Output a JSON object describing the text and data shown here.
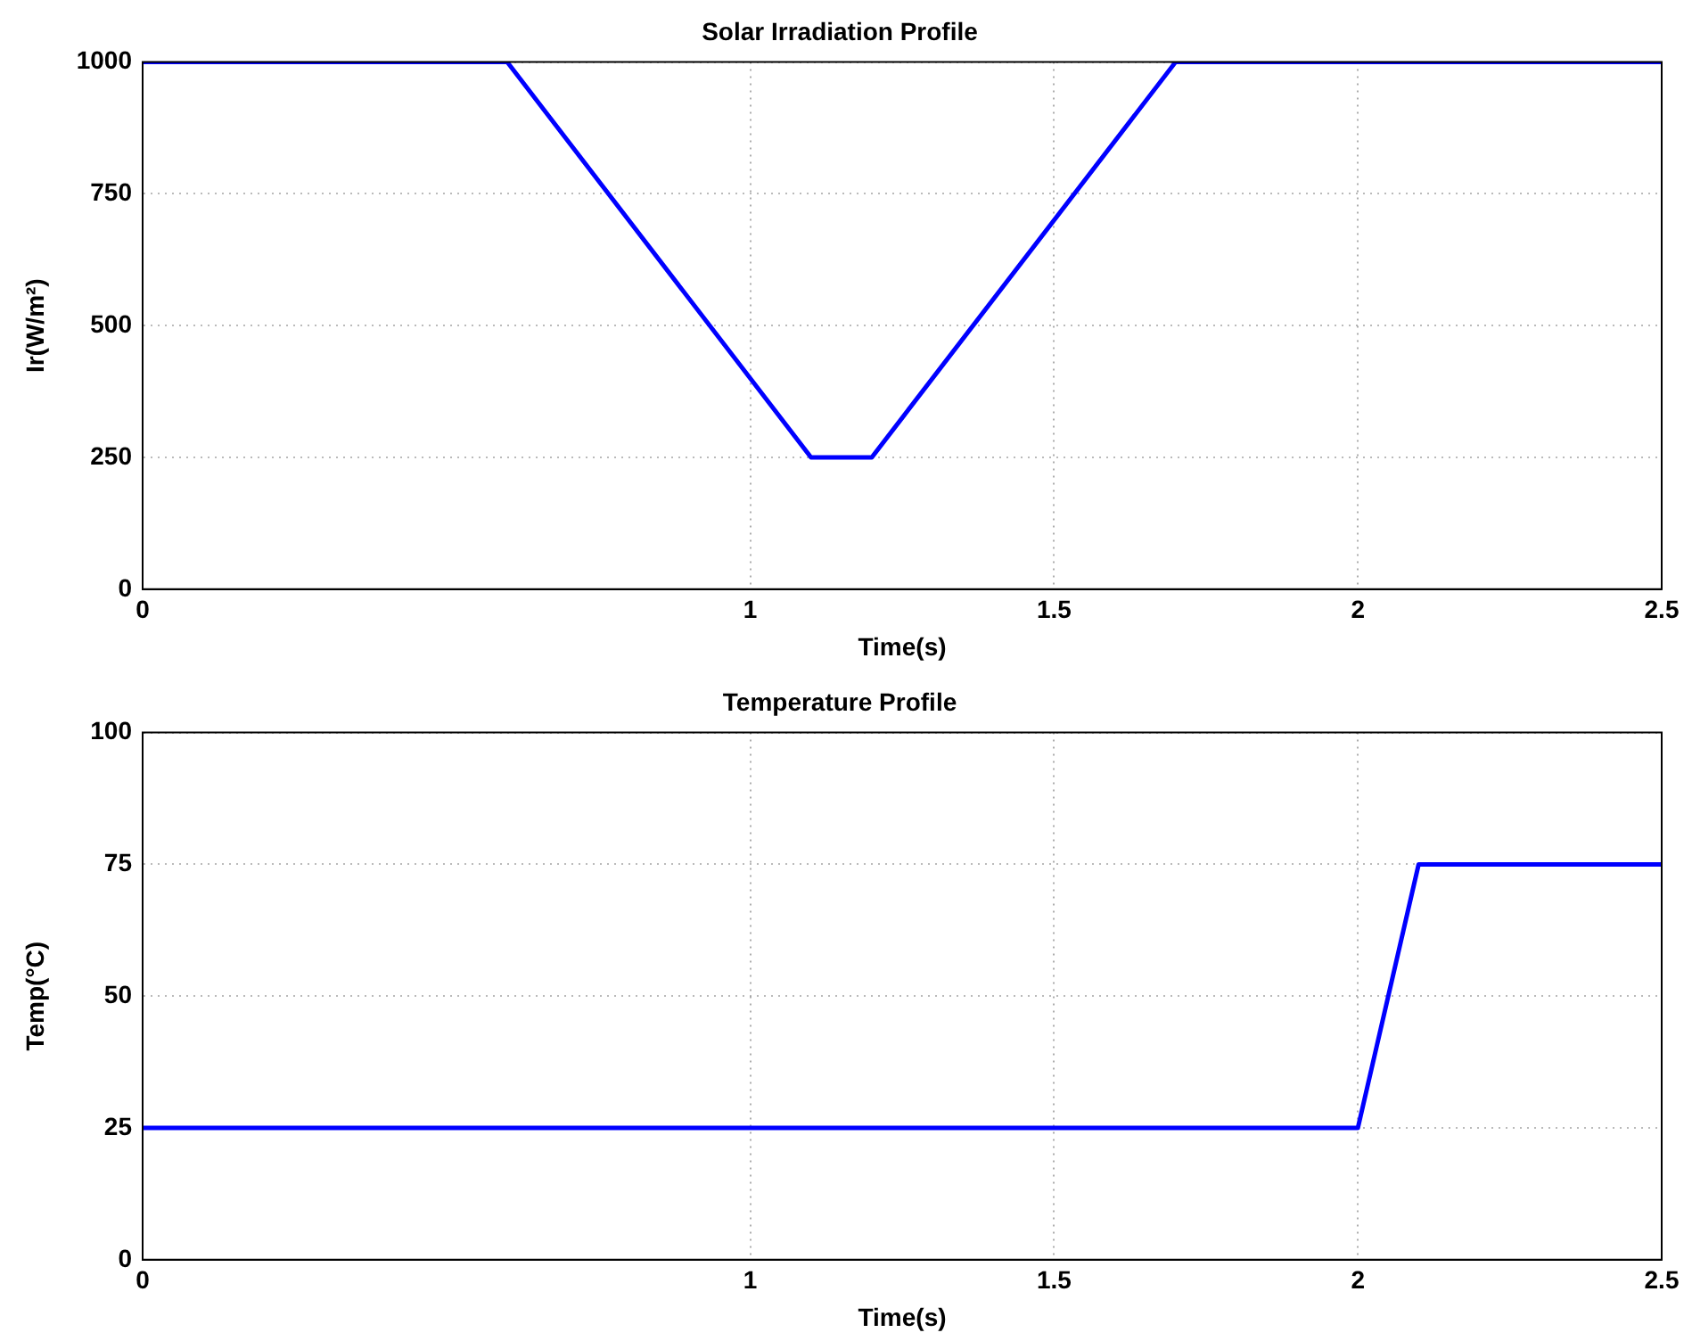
{
  "chart_data": [
    {
      "type": "line",
      "title": "Solar Irradiation Profile",
      "xlabel": "Time(s)",
      "ylabel": "Ir(W/m²)",
      "series": [
        {
          "color": "#0000ff",
          "x": [
            0,
            0.6,
            1.1,
            1.2,
            1.7,
            2.5
          ],
          "values": [
            1000,
            1000,
            250,
            250,
            1000,
            1000
          ]
        }
      ],
      "xlim": [
        0,
        2.5
      ],
      "xticks": [
        0,
        1,
        1.5,
        2,
        2.5
      ],
      "ylim": [
        0,
        1000
      ],
      "yticks": [
        0,
        250,
        500,
        750,
        1000
      ],
      "grid": true,
      "legend": false,
      "marker": "none",
      "line_style": "solid"
    },
    {
      "type": "line",
      "title": "Temperature Profile",
      "xlabel": "Time(s)",
      "ylabel": "Temp(°C)",
      "series": [
        {
          "color": "#0000ff",
          "x": [
            0,
            2,
            2.1,
            2.5
          ],
          "values": [
            25,
            25,
            75,
            75
          ]
        }
      ],
      "xlim": [
        0,
        2.5
      ],
      "xticks": [
        0,
        1,
        1.5,
        2,
        2.5
      ],
      "ylim": [
        0,
        100
      ],
      "yticks": [
        0,
        25,
        50,
        75,
        100
      ],
      "grid": true,
      "legend": false,
      "marker": "none",
      "line_style": "solid"
    }
  ]
}
